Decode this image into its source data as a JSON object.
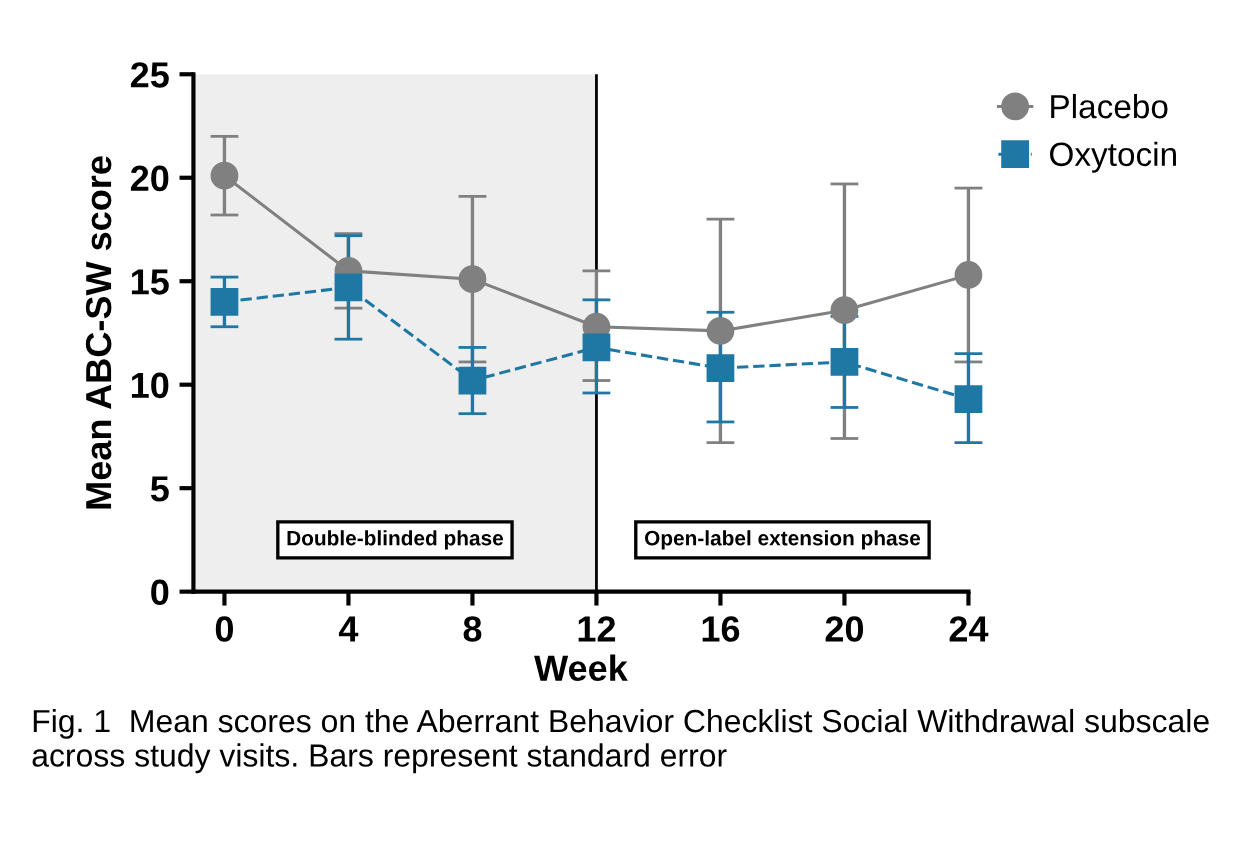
{
  "chart_data": {
    "type": "line",
    "xlabel": "Week",
    "ylabel": "Mean ABC-SW score",
    "x": [
      0,
      4,
      8,
      12,
      16,
      20,
      24
    ],
    "series": [
      {
        "name": "Placebo",
        "color": "#808080",
        "marker": "circle",
        "line_style": "solid",
        "values": [
          20.1,
          15.5,
          15.1,
          12.8,
          12.6,
          13.6,
          15.3
        ],
        "errors": [
          [
            18.2,
            22.0
          ],
          [
            13.7,
            17.3
          ],
          [
            11.1,
            19.1
          ],
          [
            10.2,
            15.5
          ],
          [
            7.2,
            18.0
          ],
          [
            7.4,
            19.7
          ],
          [
            11.1,
            19.5
          ]
        ]
      },
      {
        "name": "Oxytocin",
        "color": "#1f77a4",
        "marker": "square",
        "line_style": "dashed",
        "values": [
          14.0,
          14.7,
          10.2,
          11.8,
          10.8,
          11.1,
          9.3
        ],
        "errors": [
          [
            12.8,
            15.2
          ],
          [
            12.2,
            17.2
          ],
          [
            8.6,
            11.8
          ],
          [
            9.6,
            14.1
          ],
          [
            8.2,
            13.5
          ],
          [
            8.9,
            13.3
          ],
          [
            7.2,
            11.5
          ]
        ]
      }
    ],
    "xlim": [
      -1,
      24
    ],
    "ylim": [
      0,
      25
    ],
    "xticks": [
      0,
      4,
      8,
      12,
      16,
      20,
      24
    ],
    "yticks": [
      0,
      5,
      10,
      15,
      20,
      25
    ],
    "grid": false,
    "legend": "top right",
    "bands": [
      {
        "axis": "x",
        "from": -1,
        "to": 12,
        "label": "Double-blinded phase",
        "color": "#eeeeee"
      }
    ],
    "ref_lines": [
      {
        "axis": "x",
        "value": 12,
        "color": "#000000",
        "line_style": "solid"
      }
    ],
    "annotations": [
      "Open-label extension phase",
      "Fig. 1  Mean scores on the Aberrant Behavior Checklist Social Withdrawal subscale across study visits. Bars represent standard error"
    ]
  }
}
